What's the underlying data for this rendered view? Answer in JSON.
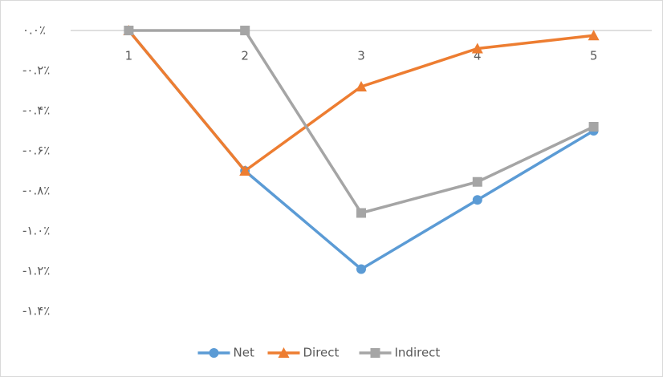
{
  "chart_data": {
    "type": "line",
    "categories": [
      "1",
      "2",
      "3",
      "4",
      "5"
    ],
    "series": [
      {
        "name": "Net",
        "color": "#5b9bd5",
        "marker": "circle",
        "values": [
          0,
          -0.7,
          -1.19,
          -0.845,
          -0.5
        ]
      },
      {
        "name": "Direct",
        "color": "#ed7d31",
        "marker": "triangle",
        "values": [
          0,
          -0.7,
          -0.28,
          -0.09,
          -0.025
        ]
      },
      {
        "name": "Indirect",
        "color": "#a5a5a5",
        "marker": "square",
        "values": [
          0,
          0,
          -0.91,
          -0.755,
          -0.48
        ]
      }
    ],
    "ylim": [
      -1.4,
      0
    ],
    "yticks": [
      {
        "value": 0,
        "label": "۰.۰٪"
      },
      {
        "value": -0.2,
        "label": "-۰.۲٪"
      },
      {
        "value": -0.4,
        "label": "-۰.۴٪"
      },
      {
        "value": -0.6,
        "label": "-۰.۶٪"
      },
      {
        "value": -0.8,
        "label": "-۰.۸٪"
      },
      {
        "value": -1.0,
        "label": "-۱.۰٪"
      },
      {
        "value": -1.2,
        "label": "-۱.۲٪"
      },
      {
        "value": -1.4,
        "label": "-۱.۴٪"
      }
    ],
    "legend": "bottom"
  }
}
